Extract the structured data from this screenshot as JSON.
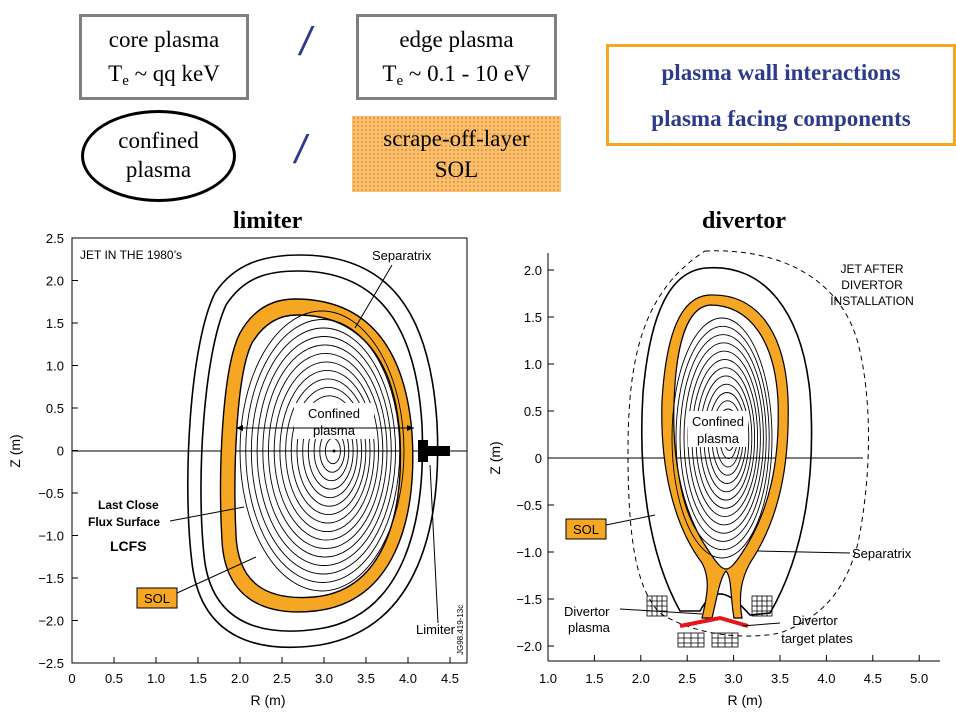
{
  "top": {
    "core": {
      "line1": "core plasma",
      "line2_prefix": "T",
      "line2_sub": "e",
      "line2_rest": " ~ qq keV"
    },
    "edge": {
      "line1": "edge plasma",
      "line2_prefix": "T",
      "line2_sub": "e",
      "line2_rest": " ~ 0.1 - 10 eV"
    },
    "slash": "/",
    "confined": {
      "line1": "confined",
      "line2": "plasma"
    },
    "sol": {
      "line1": "scrape-off-layer",
      "line2": "SOL"
    },
    "pwi": {
      "line1": "plasma wall interactions",
      "line2": "plasma facing components"
    }
  },
  "colors": {
    "sol_fill": "#f5a623",
    "accent_text": "#2e3a8c",
    "target_plate": "#e8141b",
    "box_border": "#7f7f7f"
  },
  "limiter": {
    "title": "limiter",
    "header": "JET IN THE 1980’s",
    "xlabel": "R (m)",
    "ylabel": "Z (m)",
    "xticks": [
      "0",
      "0.5",
      "1.0",
      "1.5",
      "2.0",
      "2.5",
      "3.0",
      "3.5",
      "4.0",
      "4.5"
    ],
    "yticks": [
      "2.5",
      "2.0",
      "1.5",
      "1.0",
      "0.5",
      "0",
      "−0.5",
      "−1.0",
      "−1.5",
      "−2.0",
      "−2.5"
    ],
    "labels": {
      "separatrix": "Separatrix",
      "confined1": "Confined",
      "confined2": "plasma",
      "lcfs1": "Last Close",
      "lcfs2": "Flux Surface",
      "lcfs3": "LCFS",
      "sol": "SOL",
      "limiter": "Limiter",
      "code": "JG98.419-13c"
    }
  },
  "divertor": {
    "title": "divertor",
    "header1": "JET AFTER",
    "header2": "DIVERTOR",
    "header3": "INSTALLATION",
    "xlabel": "R (m)",
    "ylabel": "Z (m)",
    "xticks": [
      "1.0",
      "1.5",
      "2.0",
      "2.5",
      "3.0",
      "3.5",
      "4.0",
      "4.5",
      "5.0"
    ],
    "yticks": [
      "2.0",
      "1.5",
      "1.0",
      "0.5",
      "0",
      "−0.5",
      "−1.0",
      "−1.5",
      "−2.0"
    ],
    "labels": {
      "confined1": "Confined",
      "confined2": "plasma",
      "sol": "SOL",
      "separatrix": "Separatrix",
      "divplasma1": "Divertor",
      "divplasma2": "plasma",
      "target1": "Divertor",
      "target2": "target plates"
    }
  }
}
